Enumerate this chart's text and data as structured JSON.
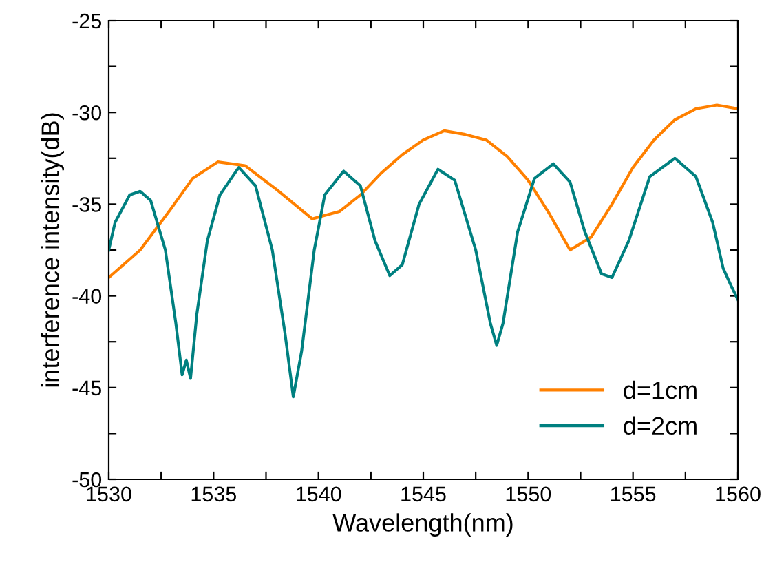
{
  "chart_data": {
    "type": "line",
    "xlabel": "Wavelength(nm)",
    "ylabel": "interference intensity(dB)",
    "xlim": [
      1530,
      1560
    ],
    "ylim": [
      -50,
      -25
    ],
    "xticks": [
      1530,
      {
        "value": 1532.5,
        "label": null
      },
      1535,
      {
        "value": 1537.5,
        "label": null
      },
      1540,
      {
        "value": 1542.5,
        "label": null
      },
      1545,
      {
        "value": 1547.5,
        "label": null
      },
      1550,
      {
        "value": 1552.5,
        "label": null
      },
      1555,
      {
        "value": 1557.5,
        "label": null
      },
      1560
    ],
    "yticks": [
      -50,
      {
        "value": -47.5,
        "label": null
      },
      -45,
      {
        "value": -42.5,
        "label": null
      },
      -40,
      {
        "value": -37.5,
        "label": null
      },
      -35,
      {
        "value": -32.5,
        "label": null
      },
      -30,
      {
        "value": -27.5,
        "label": null
      },
      -25
    ],
    "grid": false,
    "legend": "bottom right",
    "marker": "none",
    "line_style": "solid",
    "series": [
      {
        "name": "d=1cm",
        "color": "#ff8000",
        "x": [
          1530,
          1531.5,
          1533,
          1534,
          1535.2,
          1536.5,
          1538,
          1539.7,
          1541,
          1542,
          1543,
          1544,
          1545,
          1546,
          1547,
          1548,
          1549,
          1550,
          1551,
          1552,
          1553,
          1554,
          1555,
          1556,
          1557,
          1558,
          1559,
          1560
        ],
        "values": [
          -39,
          -37.5,
          -35.2,
          -33.6,
          -32.7,
          -32.9,
          -34.2,
          -35.8,
          -35.4,
          -34.5,
          -33.3,
          -32.3,
          -31.5,
          -31.0,
          -31.2,
          -31.5,
          -32.4,
          -33.7,
          -35.5,
          -37.5,
          -36.8,
          -35,
          -33,
          -31.5,
          -30.4,
          -29.8,
          -29.6,
          -29.8
        ]
      },
      {
        "name": "d=2cm",
        "color": "#008080",
        "x": [
          1530,
          1530.3,
          1531,
          1531.5,
          1532,
          1532.7,
          1533.2,
          1533.5,
          1533.7,
          1533.9,
          1534.2,
          1534.7,
          1535.3,
          1536.2,
          1537,
          1537.8,
          1538.4,
          1538.8,
          1539.2,
          1539.8,
          1540.3,
          1541.2,
          1542,
          1542.7,
          1543.4,
          1544,
          1544.8,
          1545.7,
          1546.5,
          1547.5,
          1548.2,
          1548.5,
          1548.8,
          1549.5,
          1550.3,
          1551.2,
          1552,
          1552.7,
          1553.5,
          1554,
          1554.8,
          1555.8,
          1557,
          1558,
          1558.8,
          1559.3,
          1559.7,
          1560
        ],
        "values": [
          -37.5,
          -36,
          -34.5,
          -34.3,
          -34.8,
          -37.5,
          -41.5,
          -44.3,
          -43.5,
          -44.5,
          -41,
          -37,
          -34.5,
          -33.0,
          -34,
          -37.5,
          -42,
          -45.5,
          -43,
          -37.5,
          -34.5,
          -33.2,
          -34,
          -37,
          -38.9,
          -38.3,
          -35,
          -33.1,
          -33.7,
          -37.5,
          -41.5,
          -42.7,
          -41.5,
          -36.5,
          -33.6,
          -32.8,
          -33.8,
          -36.5,
          -38.8,
          -39,
          -37,
          -33.5,
          -32.5,
          -33.5,
          -36,
          -38.5,
          -39.5,
          -40.2
        ]
      }
    ]
  }
}
